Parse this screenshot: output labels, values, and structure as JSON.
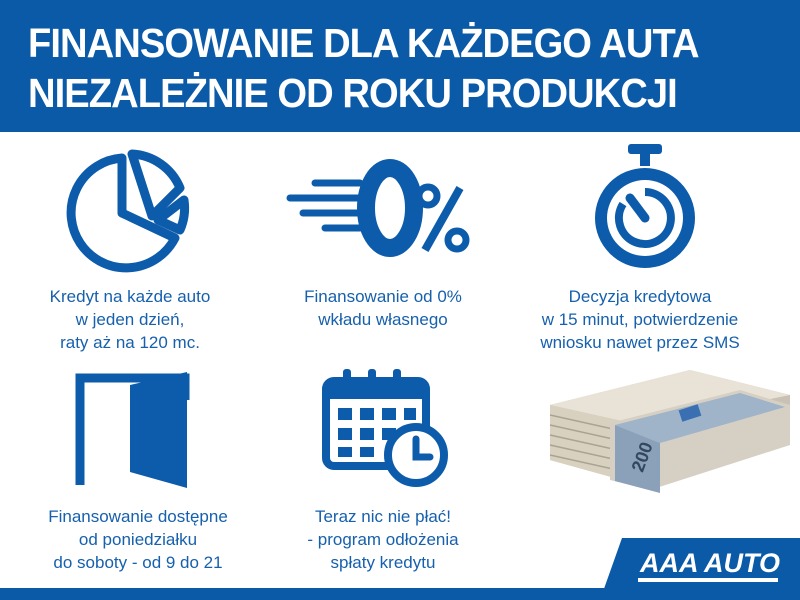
{
  "header": {
    "line1": "FINANSOWANIE DLA KAŻDEGO AUTA",
    "line2": "NIEZALEŻNIE OD ROKU PRODUKCJI"
  },
  "features": [
    {
      "icon": "pie-chart-icon",
      "lines": [
        "Kredyt na każde auto",
        "w jeden dzień,",
        "raty aż na 120 mc."
      ]
    },
    {
      "icon": "zero-percent-icon",
      "lines": [
        "Finansowanie od 0%",
        "wkładu własnego"
      ]
    },
    {
      "icon": "stopwatch-icon",
      "lines": [
        "Decyzja kredytowa",
        "w 15 minut, potwierdzenie",
        "wniosku nawet przez SMS"
      ]
    },
    {
      "icon": "open-door-icon",
      "lines": [
        "Finansowanie dostępne",
        "od poniedziałku",
        "do soboty - od 9 do 21"
      ]
    },
    {
      "icon": "calendar-clock-icon",
      "lines": [
        "Teraz nic nie płać!",
        "- program odłożenia",
        "spłaty kredytu"
      ]
    }
  ],
  "image": {
    "icon": "banknotes-stack-icon",
    "banknote_value": "200"
  },
  "logo": {
    "text": "AAA AUTO"
  },
  "colors": {
    "brand_blue": "#0b5aa8",
    "text_blue": "#1660ad"
  }
}
